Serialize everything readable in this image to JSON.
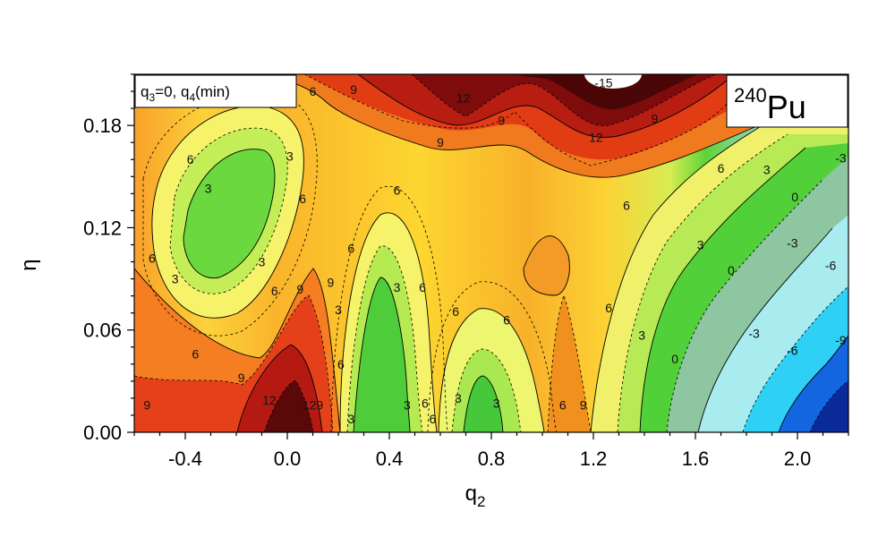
{
  "chart_data": {
    "type": "heatmap",
    "x_ticks": [
      "-0.4",
      "0.0",
      "0.4",
      "0.8",
      "1.2",
      "1.6",
      "2.0"
    ],
    "y_ticks": [
      "0.00",
      "0.06",
      "0.12",
      "0.18"
    ],
    "xlim": [
      -0.6,
      2.2
    ],
    "ylim": [
      0.0,
      0.21
    ],
    "xlabel_main": "q",
    "xlabel_sub": "2",
    "ylabel": "η",
    "inset_legend": {
      "q3_main": "q",
      "q3_sub": "3",
      "q3_rest": "=0, q",
      "q4_sub": "4",
      "q4_rest": "(min)"
    },
    "nucleus": {
      "mass": "240",
      "symbol": "Pu"
    },
    "contour_labels": [
      {
        "x": -0.15,
        "y": 0.21,
        "text": "6"
      },
      {
        "x": 0.1,
        "y": 0.2,
        "text": "6"
      },
      {
        "x": 0.26,
        "y": 0.201,
        "text": "9"
      },
      {
        "x": 0.69,
        "y": 0.196,
        "text": "12"
      },
      {
        "x": 1.24,
        "y": 0.205,
        "text": "-15"
      },
      {
        "x": 1.79,
        "y": 0.206,
        "text": "12"
      },
      {
        "x": 0.84,
        "y": 0.183,
        "text": "9"
      },
      {
        "x": 1.21,
        "y": 0.173,
        "text": "12"
      },
      {
        "x": 1.44,
        "y": 0.184,
        "text": "9"
      },
      {
        "x": 0.6,
        "y": 0.17,
        "text": "9"
      },
      {
        "x": -0.38,
        "y": 0.16,
        "text": "6"
      },
      {
        "x": 0.01,
        "y": 0.162,
        "text": "3"
      },
      {
        "x": 1.7,
        "y": 0.155,
        "text": "6"
      },
      {
        "x": 1.88,
        "y": 0.154,
        "text": "3"
      },
      {
        "x": 2.17,
        "y": 0.161,
        "text": "-3"
      },
      {
        "x": -0.31,
        "y": 0.143,
        "text": "3"
      },
      {
        "x": 0.43,
        "y": 0.142,
        "text": "6"
      },
      {
        "x": 0.06,
        "y": 0.137,
        "text": "6"
      },
      {
        "x": 1.99,
        "y": 0.138,
        "text": "0"
      },
      {
        "x": 1.33,
        "y": 0.133,
        "text": "6"
      },
      {
        "x": 1.98,
        "y": 0.111,
        "text": "-3"
      },
      {
        "x": 0.25,
        "y": 0.108,
        "text": "6"
      },
      {
        "x": 1.62,
        "y": 0.11,
        "text": "3"
      },
      {
        "x": -0.53,
        "y": 0.102,
        "text": "6"
      },
      {
        "x": -0.1,
        "y": 0.1,
        "text": "3"
      },
      {
        "x": 2.13,
        "y": 0.098,
        "text": "-6"
      },
      {
        "x": 1.74,
        "y": 0.095,
        "text": "0"
      },
      {
        "x": -0.44,
        "y": 0.09,
        "text": "3"
      },
      {
        "x": 0.17,
        "y": 0.088,
        "text": "9"
      },
      {
        "x": 0.43,
        "y": 0.085,
        "text": "3"
      },
      {
        "x": 0.53,
        "y": 0.085,
        "text": "6"
      },
      {
        "x": -0.05,
        "y": 0.083,
        "text": "6"
      },
      {
        "x": 0.05,
        "y": 0.084,
        "text": "9"
      },
      {
        "x": 1.26,
        "y": 0.073,
        "text": "6"
      },
      {
        "x": 0.2,
        "y": 0.072,
        "text": "3"
      },
      {
        "x": 0.66,
        "y": 0.071,
        "text": "6"
      },
      {
        "x": 0.86,
        "y": 0.066,
        "text": "6"
      },
      {
        "x": 1.39,
        "y": 0.057,
        "text": "3"
      },
      {
        "x": 1.83,
        "y": 0.058,
        "text": "-3"
      },
      {
        "x": 2.17,
        "y": 0.054,
        "text": "-9"
      },
      {
        "x": -0.36,
        "y": 0.046,
        "text": "6"
      },
      {
        "x": 1.98,
        "y": 0.048,
        "text": "-6"
      },
      {
        "x": 1.52,
        "y": 0.043,
        "text": "0"
      },
      {
        "x": 0.21,
        "y": 0.04,
        "text": "6"
      },
      {
        "x": -0.18,
        "y": 0.032,
        "text": "9"
      },
      {
        "x": -0.07,
        "y": 0.019,
        "text": "12"
      },
      {
        "x": 0.1,
        "y": 0.016,
        "text": "129"
      },
      {
        "x": 0.67,
        "y": 0.02,
        "text": "3"
      },
      {
        "x": 0.82,
        "y": 0.017,
        "text": "3"
      },
      {
        "x": 0.54,
        "y": 0.017,
        "text": "6"
      },
      {
        "x": 0.47,
        "y": 0.016,
        "text": "3"
      },
      {
        "x": 1.08,
        "y": 0.016,
        "text": "6"
      },
      {
        "x": 1.16,
        "y": 0.016,
        "text": "9"
      },
      {
        "x": -0.55,
        "y": 0.016,
        "text": "9"
      },
      {
        "x": 0.25,
        "y": 0.008,
        "text": "3"
      },
      {
        "x": 0.57,
        "y": 0.008,
        "text": "6"
      }
    ]
  }
}
